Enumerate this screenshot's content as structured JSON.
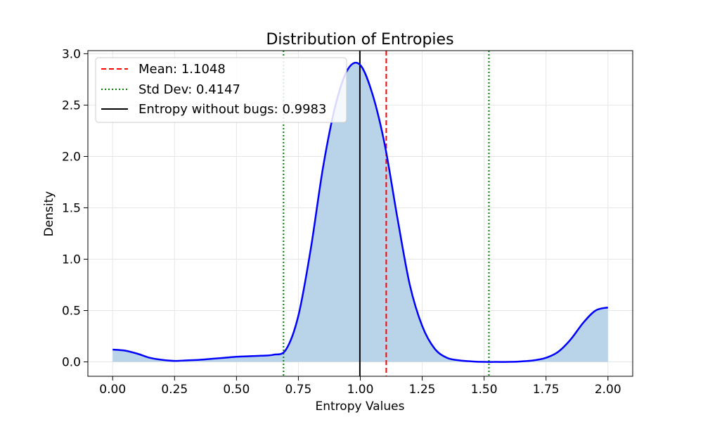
{
  "chart_data": {
    "type": "area",
    "title": "Distribution of Entropies",
    "xlabel": "Entropy Values",
    "ylabel": "Density",
    "xlim": [
      -0.1,
      2.1
    ],
    "ylim": [
      -0.14,
      3.03
    ],
    "grid": true,
    "legend_position": "top-left",
    "x_ticks": [
      "0.00",
      "0.25",
      "0.50",
      "0.75",
      "1.00",
      "1.25",
      "1.50",
      "1.75",
      "2.00"
    ],
    "y_ticks": [
      "0.0",
      "0.5",
      "1.0",
      "1.5",
      "2.0",
      "2.5",
      "3.0"
    ],
    "density_curve": {
      "color": "#0000ff",
      "fill_color": "#b9d4e8",
      "x": [
        0.0,
        0.05,
        0.1,
        0.15,
        0.2,
        0.25,
        0.3,
        0.35,
        0.4,
        0.45,
        0.5,
        0.55,
        0.6,
        0.65,
        0.7,
        0.75,
        0.8,
        0.85,
        0.9,
        0.95,
        1.0,
        1.05,
        1.1,
        1.15,
        1.2,
        1.25,
        1.3,
        1.35,
        1.4,
        1.45,
        1.5,
        1.55,
        1.6,
        1.65,
        1.7,
        1.75,
        1.8,
        1.85,
        1.9,
        1.95,
        2.0
      ],
      "y": [
        0.12,
        0.11,
        0.08,
        0.04,
        0.02,
        0.01,
        0.015,
        0.02,
        0.03,
        0.04,
        0.05,
        0.055,
        0.06,
        0.07,
        0.12,
        0.45,
        1.1,
        1.9,
        2.5,
        2.85,
        2.89,
        2.6,
        2.1,
        1.4,
        0.75,
        0.35,
        0.13,
        0.04,
        0.015,
        0.005,
        0.0,
        0.0,
        0.0,
        0.005,
        0.015,
        0.04,
        0.1,
        0.22,
        0.38,
        0.5,
        0.53
      ]
    },
    "reference_lines": [
      {
        "label": "Mean: 1.1048",
        "x": 1.1048,
        "color": "#ff0000",
        "style": "dashed"
      },
      {
        "label": "Std Dev: 0.4147",
        "x": 0.6901,
        "color": "#008000",
        "style": "dotted"
      },
      {
        "label": "",
        "x": 1.5195,
        "color": "#008000",
        "style": "dotted"
      },
      {
        "label": "Entropy without bugs: 0.9983",
        "x": 0.9983,
        "color": "#000000",
        "style": "solid"
      }
    ]
  }
}
